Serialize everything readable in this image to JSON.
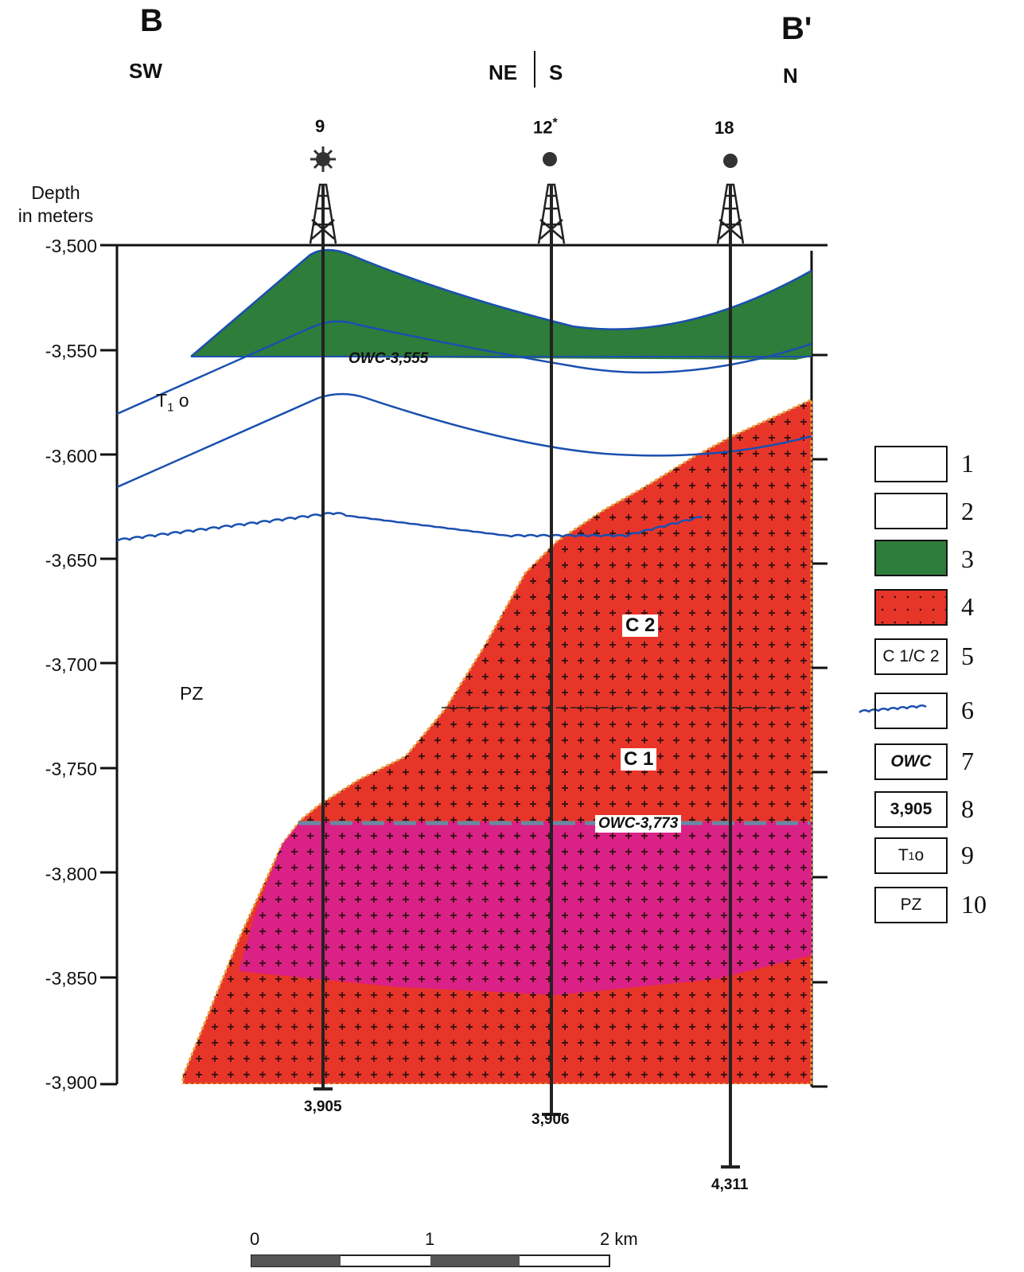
{
  "header": {
    "left_letter": "B",
    "right_letter": "B'",
    "left_dir": "SW",
    "mid_dir_left": "NE",
    "mid_dir_right": "S",
    "right_dir": "N"
  },
  "wells": [
    {
      "name": "9",
      "symbol": "star-burst",
      "bottom": "3,905"
    },
    {
      "name": "12",
      "marker": "*",
      "symbol": "dot",
      "bottom": "3,906"
    },
    {
      "name": "18",
      "symbol": "dot",
      "bottom": "4,311"
    }
  ],
  "axis": {
    "title_line1": "Depth",
    "title_line2": "in meters",
    "ticks": [
      "-3,500",
      "-3,550",
      "-3,600",
      "-3,650",
      "-3,700",
      "-3,750",
      "-3,800",
      "-3,850",
      "-3,900"
    ]
  },
  "labels": {
    "owc_upper": "OWC-3,555",
    "owc_lower": "OWC-3,773",
    "t1o_main": "T",
    "t1o_sub": "1",
    "t1o_tail": " o",
    "pz": "PZ",
    "c2": "C 2",
    "c1": "C 1"
  },
  "legend": {
    "items": [
      {
        "num": "1",
        "content": "",
        "icon": "oil-well-icon"
      },
      {
        "num": "2",
        "content": "",
        "icon": "dry-well-icon"
      },
      {
        "num": "3",
        "content": "",
        "icon": "green-swatch"
      },
      {
        "num": "4",
        "content": "",
        "icon": "red-crosses-swatch"
      },
      {
        "num": "5",
        "content": "C 1/C 2"
      },
      {
        "num": "6",
        "content": "",
        "icon": "wavy-line-icon"
      },
      {
        "num": "7",
        "content": "OWC"
      },
      {
        "num": "8",
        "content": "3,905"
      },
      {
        "num": "9",
        "content": "T",
        "sub": "1",
        "tail": " o"
      },
      {
        "num": "10",
        "content": "PZ"
      }
    ]
  },
  "scale": {
    "label0": "0",
    "label1": "1",
    "label2": "2 km"
  },
  "colors": {
    "green": "#2e7d3a",
    "red": "#e8352a",
    "magenta": "#d81f8f",
    "blue_line": "#1a4fb0",
    "dash": "#6a8aa0"
  }
}
